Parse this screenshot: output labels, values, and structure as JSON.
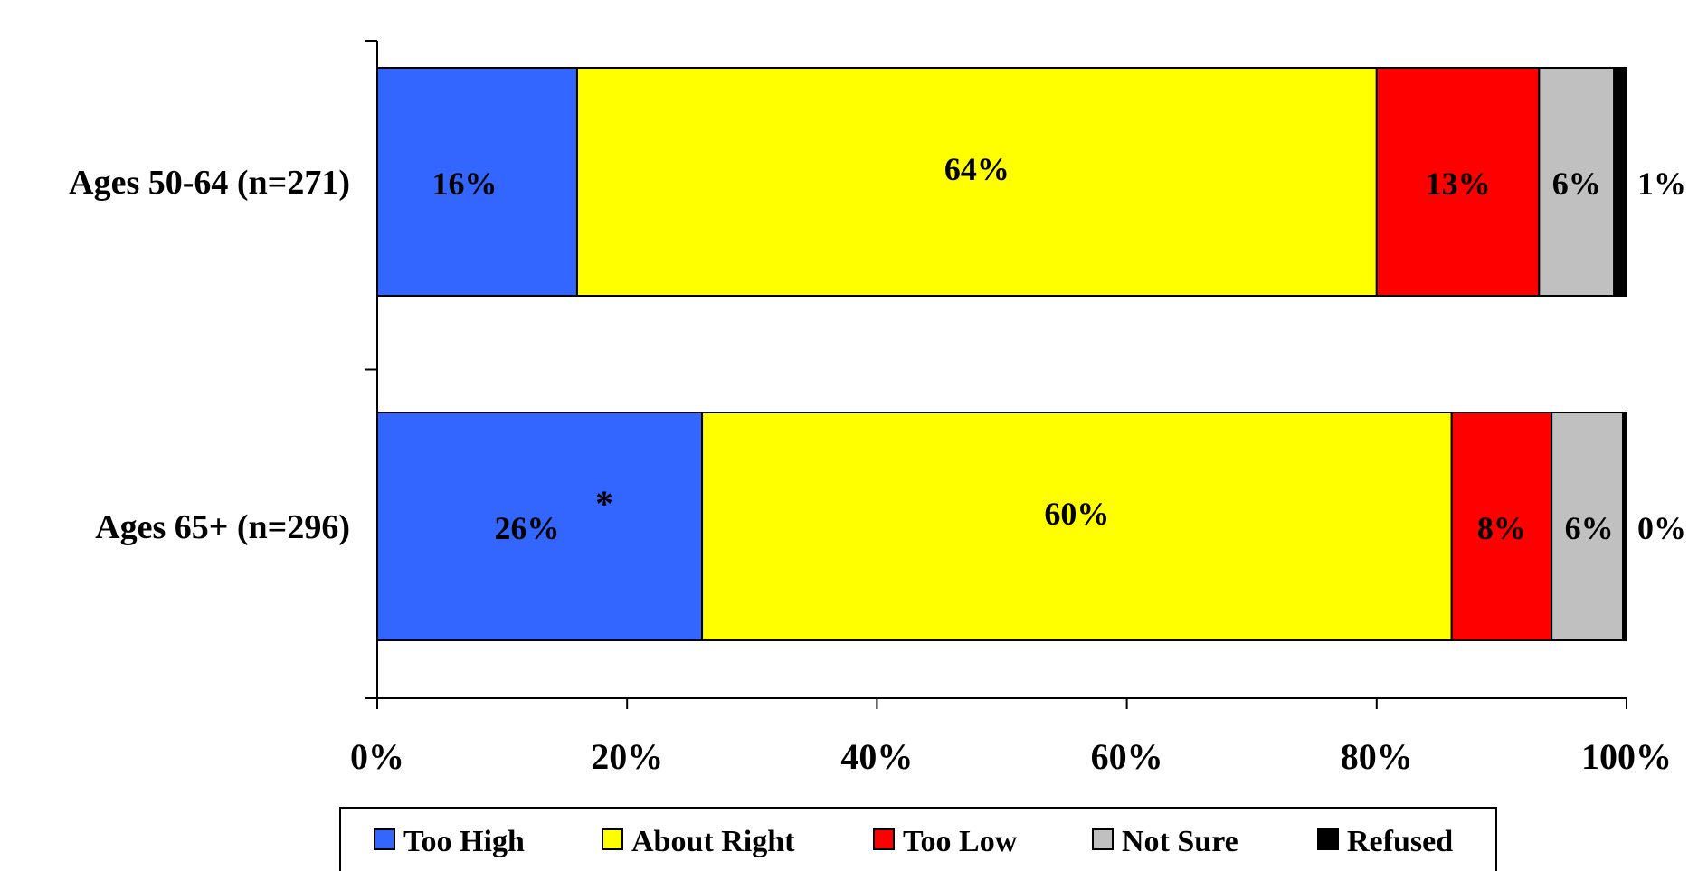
{
  "chart_data": {
    "type": "bar",
    "orientation": "horizontal",
    "stacked": true,
    "percent_stacked": true,
    "categories": [
      "Ages 50-64 (n=271)",
      "Ages 65+ (n=296)"
    ],
    "series": [
      {
        "name": "Too High",
        "values": [
          16,
          26
        ],
        "labels": [
          "16%",
          "26%"
        ],
        "color": "#3366FF"
      },
      {
        "name": "About Right",
        "values": [
          64,
          60
        ],
        "labels": [
          "64%",
          "60%"
        ],
        "color": "#FFFF00"
      },
      {
        "name": "Too Low",
        "values": [
          13,
          8
        ],
        "labels": [
          "13%",
          "8%"
        ],
        "color": "#FF0000"
      },
      {
        "name": "Not Sure",
        "values": [
          6,
          6
        ],
        "labels": [
          "6%",
          "6%"
        ],
        "color": "#C0C0C0"
      },
      {
        "name": "Refused",
        "values": [
          1,
          0
        ],
        "labels": [
          "1%",
          "0%"
        ],
        "color": "#000000"
      }
    ],
    "annotation": {
      "category_index": 1,
      "series_index": 0,
      "text": "*"
    },
    "x_ticks": [
      "0%",
      "20%",
      "40%",
      "60%",
      "80%",
      "100%"
    ],
    "xlim": [
      0,
      100
    ],
    "grid": false,
    "legend_position": "bottom",
    "title": "",
    "xlabel": "",
    "ylabel": ""
  }
}
